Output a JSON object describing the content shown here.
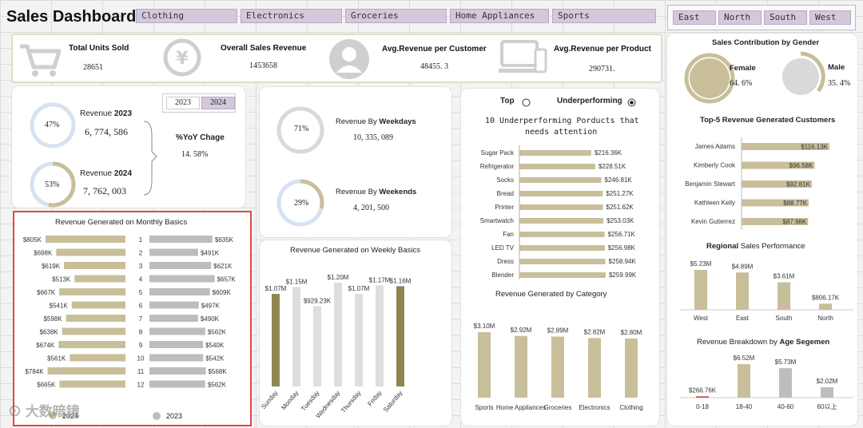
{
  "header": {
    "title": "Sales Dashboard",
    "category_slicers": [
      "Clothing",
      "Electronics",
      "Groceries",
      "Home Appliances",
      "Sports"
    ],
    "region_slicers": [
      "East",
      "North",
      "South",
      "West"
    ]
  },
  "kpis": [
    {
      "label": "Total Units Sold",
      "value": "28651",
      "icon": "cart-icon"
    },
    {
      "label": "Overall Sales Revenue",
      "value": "1453658",
      "icon": "yen-icon"
    },
    {
      "label": "Avg.Revenue per Customer",
      "value": "48455. 3",
      "icon": "user-icon"
    },
    {
      "label": "Avg.Revenue per Product",
      "value": "290731.",
      "icon": "devices-icon"
    }
  ],
  "yoy": {
    "year_buttons": [
      "2023",
      "2024"
    ],
    "rev2023_label": "Revenue",
    "rev2023_year": "2023",
    "rev2023_value": "6, 774, 586",
    "rev2023_pct": "47%",
    "rev2024_label": "Revenue",
    "rev2024_year": "2024",
    "rev2024_value": "7, 762, 003",
    "rev2024_pct": "53%",
    "yoy_label": "%YoY Chage",
    "yoy_value": "14. 58%"
  },
  "weekdays": {
    "label": "Revenue By",
    "label_bold": "Weekdays",
    "value": "10, 335, 089",
    "pct": "71%",
    "pct_num": 71
  },
  "weekends": {
    "label": "Revenue By",
    "label_bold": "Weekends",
    "value": "4, 201, 500",
    "pct": "29%",
    "pct_num": 29
  },
  "underperforming": {
    "toggle_top": "Top",
    "toggle_under": "Underperforming",
    "title_line1": "10 Underperforming  Porducts that",
    "title_line2": "needs attention"
  },
  "gender": {
    "title": "Sales Contribution by Gender",
    "female_label": "Female",
    "female_value": "64. 6%",
    "male_label": "Male",
    "male_value": "35. 4%"
  },
  "watermark": "大数暗镜",
  "monthly_legend": {
    "a": "2024",
    "b": "2023"
  },
  "chart_data": [
    {
      "type": "bar",
      "title": "Revenue Generated on Monthly Basics",
      "categories": [
        "1",
        "2",
        "3",
        "4",
        "5",
        "6",
        "7",
        "8",
        "9",
        "10",
        "11",
        "12"
      ],
      "series": [
        {
          "name": "2024",
          "values": [
            805,
            698,
            619,
            513,
            667,
            541,
            598,
            638,
            674,
            561,
            784,
            665
          ],
          "labels": [
            "$805K",
            "$698K",
            "$619K",
            "$513K",
            "$667K",
            "$541K",
            "$598K",
            "$638K",
            "$674K",
            "$561K",
            "$784K",
            "$665K"
          ]
        },
        {
          "name": "2023",
          "values": [
            635,
            491,
            621,
            657,
            609,
            497,
            490,
            562,
            540,
            542,
            568,
            562
          ],
          "labels": [
            "$635K",
            "$491K",
            "$621K",
            "$657K",
            "$609K",
            "$497K",
            "$490K",
            "$562K",
            "$540K",
            "$542K",
            "$568K",
            "$562K"
          ]
        }
      ]
    },
    {
      "type": "bar",
      "title": "Revenue Generated on Weekly Basics",
      "categories": [
        "Sunday",
        "Monday",
        "Tuesday",
        "Wednesday",
        "Thursday",
        "Friday",
        "Saturday"
      ],
      "values": [
        1.07,
        1.15,
        0.92923,
        1.2,
        1.07,
        1.17,
        1.16
      ],
      "labels": [
        "$1.07M",
        "$1.15M",
        "$929.23K",
        "$1.20M",
        "$1.07M",
        "$1.17M",
        "$1.16M"
      ]
    },
    {
      "type": "bar",
      "title": "10 Underperforming Porducts that needs attention",
      "categories": [
        "Sugar Pack",
        "Refrigerator",
        "Socks",
        "Bread",
        "Printer",
        "Smartwatch",
        "Fan",
        "LED TV",
        "Dress",
        "Blender"
      ],
      "values": [
        216.36,
        228.51,
        246.81,
        251.27,
        251.62,
        253.03,
        256.71,
        256.98,
        258.94,
        259.99
      ],
      "labels": [
        "$216.36K",
        "$228.51K",
        "$246.81K",
        "$251.27K",
        "$251.62K",
        "$253.03K",
        "$256.71K",
        "$256.98K",
        "$258.94K",
        "$259.99K"
      ]
    },
    {
      "type": "bar",
      "title": "Revenue Generated by Category",
      "categories": [
        "Sports",
        "Home Appliances",
        "Groceries",
        "Electronics",
        "Clothing"
      ],
      "values": [
        3.1,
        2.92,
        2.89,
        2.82,
        2.8
      ],
      "labels": [
        "$3.10M",
        "$2.92M",
        "$2.89M",
        "$2.82M",
        "$2.80M"
      ]
    },
    {
      "type": "bar",
      "title": "Top-5 Revenue Generated Customers",
      "title_plain": "Top-5 Revenue Generated",
      "title_bold": "Customers",
      "categories": [
        "James Adams",
        "Kimberly Cook",
        "Benjamin Stewart",
        "Kathleen Kelly",
        "Kevin Gutierrez"
      ],
      "values": [
        116.13,
        96.58,
        92.81,
        88.77,
        87.98
      ],
      "labels": [
        "$116.13K",
        "$96.58K",
        "$92.81K",
        "$88.77K",
        "$87.98K"
      ]
    },
    {
      "type": "bar",
      "title": "Regional Sales Performance",
      "title_bold": "Regional",
      "title_plain": "Sales Performance",
      "categories": [
        "West",
        "East",
        "South",
        "North"
      ],
      "values": [
        5.23,
        4.89,
        3.61,
        0.80617
      ],
      "labels": [
        "$5.23M",
        "$4.89M",
        "$3.61M",
        "$806.17K"
      ]
    },
    {
      "type": "bar",
      "title": "Revenue Breakdown by Age Segemen",
      "title_plain": "Revenue Breakdown by",
      "title_bold": "Age Segemen",
      "categories": [
        "0-18",
        "18-40",
        "40-60",
        "60以上"
      ],
      "values": [
        0.26676,
        6.52,
        5.73,
        2.02
      ],
      "labels": [
        "$266.76K",
        "$6.52M",
        "$5.73M",
        "$2.02M"
      ]
    }
  ]
}
